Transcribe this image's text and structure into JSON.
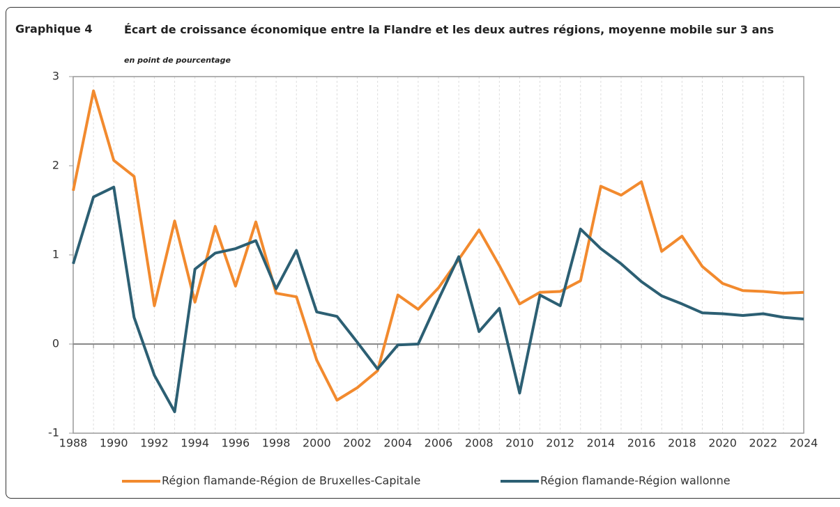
{
  "chart_data": {
    "type": "line",
    "label": "Graphique 4",
    "title": "Écart de croissance économique entre la Flandre et les deux autres régions, moyenne mobile sur 3 ans",
    "subtitle": "en point de pourcentage",
    "x": [
      1988,
      1989,
      1990,
      1991,
      1992,
      1993,
      1994,
      1995,
      1996,
      1997,
      1998,
      1999,
      2000,
      2001,
      2002,
      2003,
      2004,
      2005,
      2006,
      2007,
      2008,
      2009,
      2010,
      2011,
      2012,
      2013,
      2014,
      2015,
      2016,
      2017,
      2018,
      2019,
      2020,
      2021,
      2022,
      2023,
      2024
    ],
    "series": [
      {
        "name": "Région flamande-Région de Bruxelles-Capitale",
        "color": "#f28a2e",
        "values": [
          1.72,
          2.84,
          2.06,
          1.88,
          0.43,
          1.38,
          0.47,
          1.32,
          0.65,
          1.37,
          0.57,
          0.53,
          -0.18,
          -0.63,
          -0.49,
          -0.3,
          0.55,
          0.39,
          0.63,
          0.95,
          1.28,
          0.88,
          0.45,
          0.58,
          0.59,
          0.71,
          1.77,
          1.67,
          1.82,
          1.04,
          1.21,
          0.87,
          0.68,
          0.6,
          0.59,
          0.57,
          0.58
        ]
      },
      {
        "name": "Région flamande-Région wallonne",
        "color": "#2c5f73",
        "values": [
          0.9,
          1.65,
          1.76,
          0.3,
          -0.35,
          -0.76,
          0.84,
          1.02,
          1.07,
          1.16,
          0.62,
          1.05,
          0.36,
          0.31,
          0.02,
          -0.28,
          -0.01,
          0.0,
          0.5,
          0.98,
          0.14,
          0.4,
          -0.55,
          0.55,
          0.43,
          1.29,
          1.07,
          0.9,
          0.7,
          0.54,
          0.45,
          0.35,
          0.34,
          0.32,
          0.34,
          0.3,
          0.28
        ]
      }
    ],
    "xlim": [
      1988,
      2024
    ],
    "xticks": [
      1988,
      1990,
      1992,
      1994,
      1996,
      1998,
      2000,
      2002,
      2004,
      2006,
      2008,
      2010,
      2012,
      2014,
      2016,
      2018,
      2020,
      2022,
      2024
    ],
    "ylim": [
      -1,
      3
    ],
    "yticks": [
      -1,
      0,
      1,
      2,
      3
    ],
    "grid": true,
    "legend": "bottom"
  }
}
